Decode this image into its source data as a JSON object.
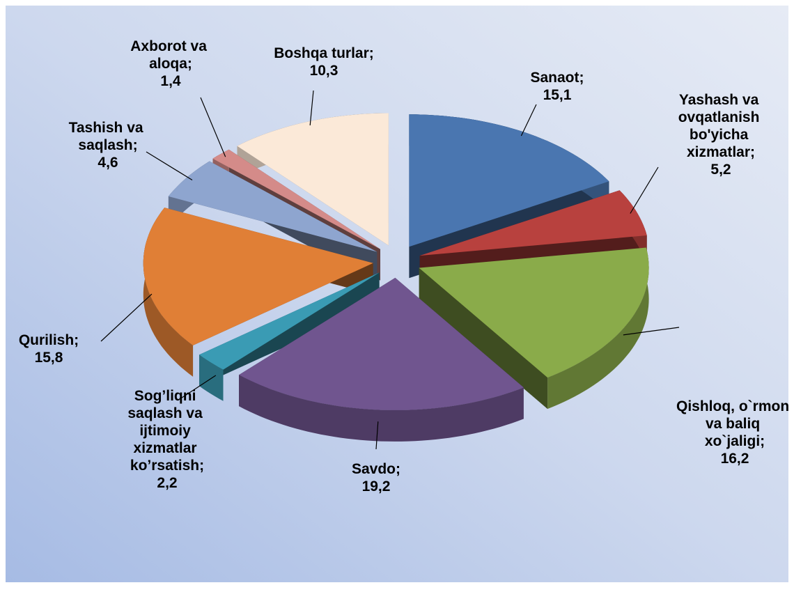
{
  "chart_data": {
    "type": "pie3d",
    "categories": [
      "Sanaot;",
      "Yashash va ovqatlanish bo'yicha xizmatlar;",
      "Qishloq, o`rmon va baliq xo`jaligi;",
      "Savdo;",
      "Sog’liqni saqlash va ijtimoiy xizmatlar ko’rsatish;",
      "Qurilish;",
      "Tashish va saqlash;",
      "Axborot va aloqa;",
      "Boshqa turlar;"
    ],
    "values": [
      15.1,
      5.2,
      16.2,
      19.2,
      2.2,
      15.8,
      4.6,
      1.4,
      10.3
    ],
    "value_labels": [
      "15,1",
      "5,2",
      "16,2",
      "19,2",
      "2,2",
      "15,8",
      "4,6",
      "1,4",
      "10,3"
    ],
    "colors": [
      "#4a76b0",
      "#b8413e",
      "#8aab4a",
      "#70558f",
      "#3a9bb4",
      "#e07f36",
      "#8ea5cf",
      "#d48b89",
      "#fbe9d8"
    ]
  }
}
